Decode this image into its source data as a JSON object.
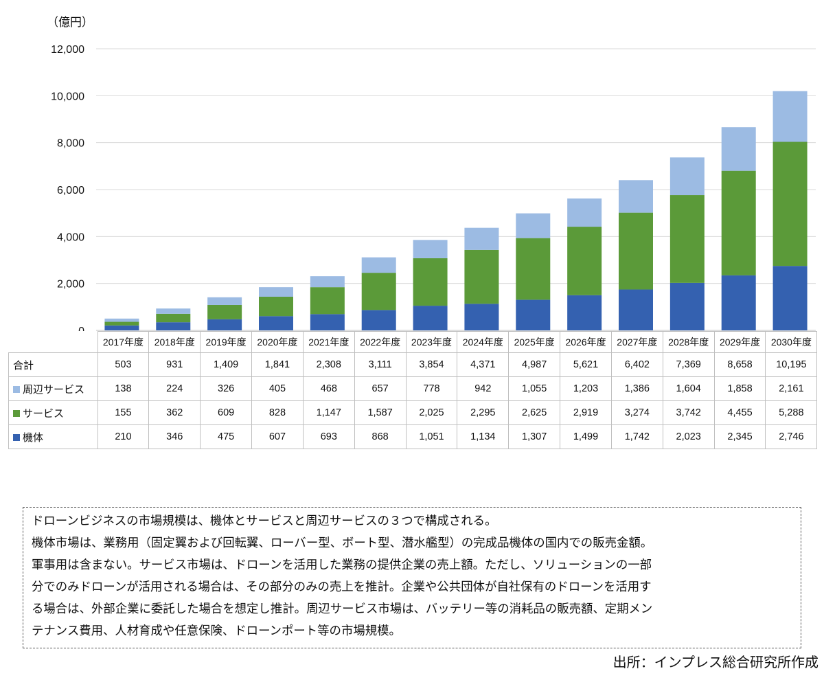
{
  "chart_data": {
    "type": "bar",
    "stacked": true,
    "unit_label": "（億円）",
    "categories": [
      "2017年度",
      "2018年度",
      "2019年度",
      "2020年度",
      "2021年度",
      "2022年度",
      "2023年度",
      "2024年度",
      "2025年度",
      "2026年度",
      "2027年度",
      "2028年度",
      "2029年度",
      "2030年度"
    ],
    "ylim": [
      0,
      12000
    ],
    "yticks": [
      0,
      2000,
      4000,
      6000,
      8000,
      10000,
      12000
    ],
    "ytick_labels": [
      "0",
      "2,000",
      "4,000",
      "6,000",
      "8,000",
      "10,000",
      "12,000"
    ],
    "grid": true,
    "series": [
      {
        "name": "機体",
        "color": "#3461b0",
        "values": [
          210,
          346,
          475,
          607,
          693,
          868,
          1051,
          1134,
          1307,
          1499,
          1742,
          2023,
          2345,
          2746
        ],
        "labels": [
          "210",
          "346",
          "475",
          "607",
          "693",
          "868",
          "1,051",
          "1,134",
          "1,307",
          "1,499",
          "1,742",
          "2,023",
          "2,345",
          "2,746"
        ]
      },
      {
        "name": "サービス",
        "color": "#5b9a39",
        "values": [
          155,
          362,
          609,
          828,
          1147,
          1587,
          2025,
          2295,
          2625,
          2919,
          3274,
          3742,
          4455,
          5288
        ],
        "labels": [
          "155",
          "362",
          "609",
          "828",
          "1,147",
          "1,587",
          "2,025",
          "2,295",
          "2,625",
          "2,919",
          "3,274",
          "3,742",
          "4,455",
          "5,288"
        ]
      },
      {
        "name": "周辺サービス",
        "color": "#9cbbe3",
        "values": [
          138,
          224,
          326,
          405,
          468,
          657,
          778,
          942,
          1055,
          1203,
          1386,
          1604,
          1858,
          2161
        ],
        "labels": [
          "138",
          "224",
          "326",
          "405",
          "468",
          "657",
          "778",
          "942",
          "1,055",
          "1,203",
          "1,386",
          "1,604",
          "1,858",
          "2,161"
        ]
      }
    ],
    "totals": {
      "name": "合計",
      "values": [
        503,
        931,
        1409,
        1841,
        2308,
        3111,
        3854,
        4371,
        4987,
        5621,
        6402,
        7369,
        8658,
        10195
      ],
      "labels": [
        "503",
        "931",
        "1,409",
        "1,841",
        "2,308",
        "3,111",
        "3,854",
        "4,371",
        "4,987",
        "5,621",
        "6,402",
        "7,369",
        "8,658",
        "10,195"
      ]
    },
    "table_row_order": [
      "合計",
      "周辺サービス",
      "サービス",
      "機体"
    ]
  },
  "notes": [
    "ドローンビジネスの市場規模は、機体とサービスと周辺サービスの３つで構成される。",
    "機体市場は、業務用（固定翼および回転翼、ローバー型、ボート型、潜水艦型）の完成品機体の国内での販売金額。",
    "軍事用は含まない。サービス市場は、ドローンを活用した業務の提供企業の売上額。ただし、ソリューションの一部",
    "分でのみドローンが活用される場合は、その部分のみの売上を推計。企業や公共団体が自社保有のドローンを活用す",
    "る場合は、外部企業に委託した場合を想定し推計。周辺サービス市場は、バッテリー等の消耗品の販売額、定期メン",
    "テナンス費用、人材育成や任意保険、ドローンポート等の市場規模。"
  ],
  "source": "出所：インプレス総合研究所作成"
}
